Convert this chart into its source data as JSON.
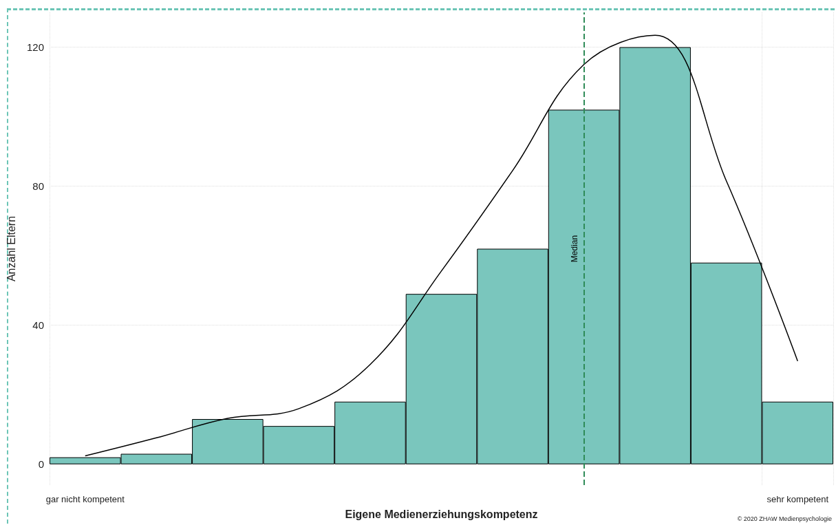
{
  "chart_data": {
    "type": "bar",
    "xlabel": "Eigene Medienerziehungskompetenz",
    "ylabel": "Anzahl Eltern",
    "categories": [
      "gar nicht kompetent",
      null,
      null,
      null,
      null,
      null,
      null,
      null,
      null,
      null,
      "sehr kompetent"
    ],
    "series": [
      {
        "color": "#7ac6bd",
        "values": [
          2,
          3,
          13,
          11,
          18,
          49,
          62,
          102,
          120,
          58,
          18
        ]
      },
      {
        "type": "line",
        "color": "#000000",
        "values": [
          2.4,
          7.6,
          13.2,
          16,
          28.7,
          55.6,
          84.5,
          115,
          123.4,
          81.5,
          29.7
        ]
      }
    ],
    "ylim": [
      -6,
      130
    ],
    "yticks": [
      0,
      40,
      80,
      120
    ],
    "grid": true,
    "annotations": [
      "Median",
      "© 2020 ZHAW Medienpsychologie"
    ]
  }
}
